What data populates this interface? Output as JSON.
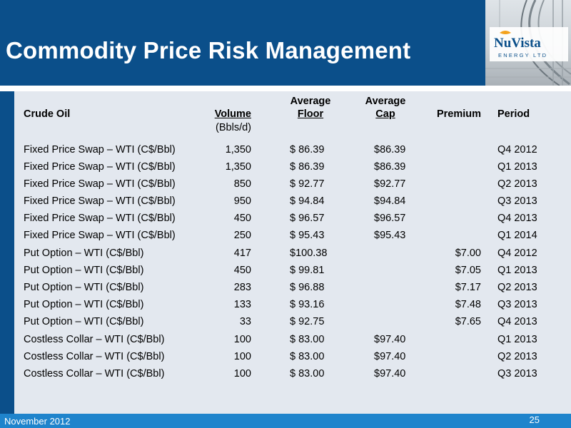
{
  "header": {
    "title": "Commodity Price Risk Management"
  },
  "logo": {
    "name": "NuVista",
    "sub": "ENERGY LTD"
  },
  "table": {
    "headers": {
      "product": "Crude Oil",
      "volume": "Volume",
      "volume_unit": "(Bbls/d)",
      "floor_top": "Average",
      "floor": "Floor",
      "cap_top": "Average",
      "cap": "Cap",
      "premium": "Premium",
      "period": "Period"
    },
    "rows": [
      {
        "product": "Fixed Price Swap – WTI (C$/Bbl)",
        "volume": "1,350",
        "floor": "$ 86.39",
        "cap": "$86.39",
        "premium": "",
        "period": "Q4 2012"
      },
      {
        "product": "Fixed Price Swap – WTI (C$/Bbl)",
        "volume": "1,350",
        "floor": "$ 86.39",
        "cap": "$86.39",
        "premium": "",
        "period": "Q1 2013"
      },
      {
        "product": "Fixed Price Swap – WTI (C$/Bbl)",
        "volume": "850",
        "floor": "$ 92.77",
        "cap": "$92.77",
        "premium": "",
        "period": "Q2 2013"
      },
      {
        "product": "Fixed Price Swap – WTI (C$/Bbl)",
        "volume": "950",
        "floor": "$ 94.84",
        "cap": "$94.84",
        "premium": "",
        "period": "Q3 2013"
      },
      {
        "product": "Fixed Price Swap – WTI (C$/Bbl)",
        "volume": "450",
        "floor": "$ 96.57",
        "cap": "$96.57",
        "premium": "",
        "period": "Q4 2013"
      },
      {
        "product": "Fixed Price Swap – WTI (C$/Bbl)",
        "volume": "250",
        "floor": "$ 95.43",
        "cap": "$95.43",
        "premium": "",
        "period": "Q1 2014"
      },
      {
        "product": "Put Option – WTI (C$/Bbl)",
        "volume": "417",
        "floor": "$100.38",
        "cap": "",
        "premium": "$7.00",
        "period": "Q4 2012"
      },
      {
        "product": "Put Option – WTI (C$/Bbl)",
        "volume": "450",
        "floor": "$ 99.81",
        "cap": "",
        "premium": "$7.05",
        "period": "Q1 2013"
      },
      {
        "product": "Put Option – WTI (C$/Bbl)",
        "volume": "283",
        "floor": "$ 96.88",
        "cap": "",
        "premium": "$7.17",
        "period": "Q2 2013"
      },
      {
        "product": "Put Option – WTI (C$/Bbl)",
        "volume": "133",
        "floor": "$ 93.16",
        "cap": "",
        "premium": "$7.48",
        "period": "Q3 2013"
      },
      {
        "product": "Put Option – WTI (C$/Bbl)",
        "volume": "33",
        "floor": "$ 92.75",
        "cap": "",
        "premium": "$7.65",
        "period": "Q4 2013"
      },
      {
        "product": "Costless Collar – WTI (C$/Bbl)",
        "volume": "100",
        "floor": "$ 83.00",
        "cap": "$97.40",
        "premium": "",
        "period": "Q1 2013"
      },
      {
        "product": "Costless Collar – WTI (C$/Bbl)",
        "volume": "100",
        "floor": "$ 83.00",
        "cap": "$97.40",
        "premium": "",
        "period": "Q2 2013"
      },
      {
        "product": "Costless Collar – WTI (C$/Bbl)",
        "volume": "100",
        "floor": "$ 83.00",
        "cap": "$97.40",
        "premium": "",
        "period": "Q3 2013"
      }
    ]
  },
  "footer": {
    "date": "November 2012",
    "page": "25"
  },
  "colors": {
    "header_blue": "#0b4f8a",
    "footer_blue": "#1f84cc",
    "panel": "#e3e8ef"
  }
}
